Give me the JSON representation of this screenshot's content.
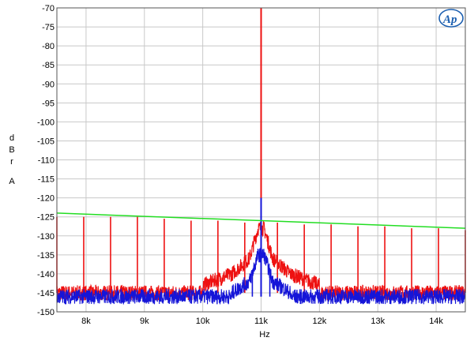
{
  "logo_text": "Ap",
  "chart_data": {
    "type": "line",
    "title": "",
    "xlabel": "Hz",
    "ylabel_lines": [
      "d",
      "B",
      "r",
      "",
      "A"
    ],
    "x_range": [
      7500,
      14500
    ],
    "ylim": [
      -150,
      -70
    ],
    "x_ticks": [
      {
        "value": 8000,
        "label": "8k"
      },
      {
        "value": 9000,
        "label": "9k"
      },
      {
        "value": 10000,
        "label": "10k"
      },
      {
        "value": 11000,
        "label": "11k"
      },
      {
        "value": 12000,
        "label": "12k"
      },
      {
        "value": 13000,
        "label": "13k"
      },
      {
        "value": 14000,
        "label": "14k"
      }
    ],
    "y_ticks": [
      -70,
      -75,
      -80,
      -85,
      -90,
      -95,
      -100,
      -105,
      -110,
      -115,
      -120,
      -125,
      -130,
      -135,
      -140,
      -145,
      -150
    ],
    "grid": true,
    "colors": {
      "red": "#ee1111",
      "blue": "#1515d8",
      "green": "#22dd22",
      "grid": "#c8c8c8",
      "logo": "#1c5fb0"
    },
    "series": [
      {
        "color": "red",
        "noise_floor": -145,
        "carrier": {
          "x": 11000,
          "y": -70
        },
        "skirt": [
          {
            "x": 10000,
            "y": -143
          },
          {
            "x": 10500,
            "y": -140
          },
          {
            "x": 10800,
            "y": -136
          },
          {
            "x": 10950,
            "y": -128
          },
          {
            "x": 11050,
            "y": -128
          },
          {
            "x": 11200,
            "y": -136
          },
          {
            "x": 11500,
            "y": -140
          },
          {
            "x": 12000,
            "y": -143
          }
        ],
        "spurs": [
          {
            "x": 7500,
            "y": -125
          },
          {
            "x": 7960,
            "y": -125
          },
          {
            "x": 8420,
            "y": -125
          },
          {
            "x": 8880,
            "y": -125
          },
          {
            "x": 9340,
            "y": -125.5
          },
          {
            "x": 9800,
            "y": -126
          },
          {
            "x": 10260,
            "y": -126
          },
          {
            "x": 10720,
            "y": -126.5
          },
          {
            "x": 11280,
            "y": -126.5
          },
          {
            "x": 11740,
            "y": -127
          },
          {
            "x": 12200,
            "y": -127
          },
          {
            "x": 12660,
            "y": -127.5
          },
          {
            "x": 13120,
            "y": -127.5
          },
          {
            "x": 13580,
            "y": -128
          },
          {
            "x": 14040,
            "y": -128
          },
          {
            "x": 14500,
            "y": -128.5
          }
        ]
      },
      {
        "color": "blue",
        "noise_floor": -146,
        "carrier": {
          "x": 11000,
          "y": -120
        },
        "skirt": [
          {
            "x": 10500,
            "y": -145
          },
          {
            "x": 10800,
            "y": -142
          },
          {
            "x": 10950,
            "y": -135
          },
          {
            "x": 11050,
            "y": -135
          },
          {
            "x": 11200,
            "y": -142
          },
          {
            "x": 11500,
            "y": -145
          }
        ],
        "spurs": [
          {
            "x": 10850,
            "y": -139
          },
          {
            "x": 11150,
            "y": -139
          }
        ]
      },
      {
        "color": "green",
        "points": [
          {
            "x": 7500,
            "y": -124
          },
          {
            "x": 14500,
            "y": -128
          }
        ]
      }
    ]
  }
}
